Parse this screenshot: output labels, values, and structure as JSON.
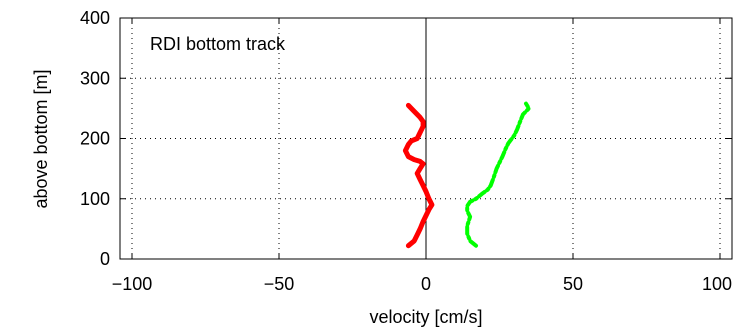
{
  "chart_data": {
    "type": "line",
    "title": "",
    "annotation": "RDI bottom track",
    "xlabel": "velocity [cm/s]",
    "ylabel": "above bottom [m]",
    "xlim": [
      -100,
      100
    ],
    "ylim": [
      0,
      400
    ],
    "xticks": [
      -100,
      -50,
      0,
      50,
      100
    ],
    "xtick_labels": [
      "−100",
      "−50",
      "0",
      "50",
      "100"
    ],
    "yticks": [
      0,
      100,
      200,
      300,
      400
    ],
    "ytick_labels": [
      "0",
      "100",
      "200",
      "300",
      "400"
    ],
    "grid": true,
    "zero_line_x": 0,
    "series": [
      {
        "color": "#ff0000",
        "style": "solid-thick",
        "x": [
          -6,
          -4,
          -3,
          -2,
          -1,
          0,
          1,
          2,
          1,
          0,
          -1,
          -2,
          -3,
          -2,
          -1,
          -2,
          -4,
          -6,
          -7,
          -6,
          -5,
          -3,
          -2,
          -1,
          -1,
          -2,
          -4,
          -6
        ],
        "y": [
          22,
          30,
          40,
          50,
          62,
          72,
          82,
          90,
          100,
          112,
          122,
          132,
          142,
          150,
          158,
          162,
          165,
          170,
          180,
          190,
          196,
          200,
          210,
          220,
          228,
          235,
          245,
          255
        ]
      },
      {
        "color": "#00ff00",
        "style": "dash-dot",
        "x": [
          17,
          15,
          14,
          14,
          15,
          14,
          14,
          15,
          17,
          19,
          21,
          22,
          23,
          24,
          25,
          26,
          27,
          28,
          30,
          31,
          32,
          33,
          35,
          34
        ],
        "y": [
          22,
          30,
          42,
          55,
          70,
          80,
          88,
          95,
          100,
          108,
          115,
          122,
          135,
          150,
          160,
          170,
          182,
          192,
          205,
          215,
          228,
          240,
          250,
          258
        ]
      }
    ]
  }
}
